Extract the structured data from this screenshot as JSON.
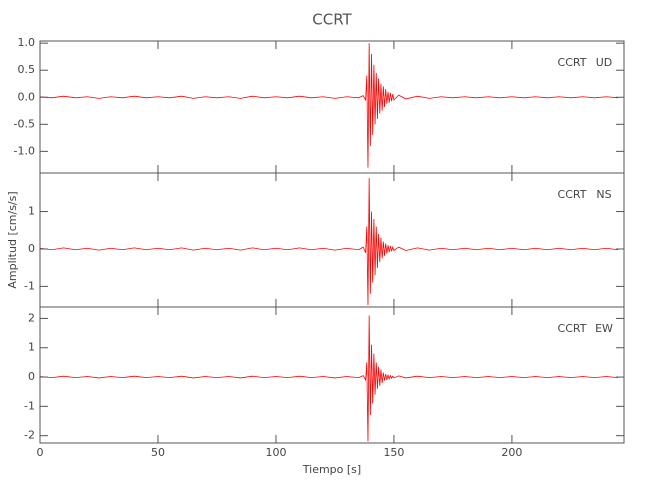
{
  "title": "CCRT",
  "xlabel": "Tiempo [s]",
  "ylabel": "Amplitud [cm/s/s]",
  "chart_data": [
    {
      "type": "line",
      "station": "CCRT",
      "component": "UD",
      "x": [
        0,
        5,
        10,
        15,
        20,
        25,
        30,
        35,
        40,
        45,
        50,
        55,
        60,
        65,
        70,
        75,
        80,
        85,
        90,
        95,
        100,
        105,
        110,
        115,
        120,
        125,
        130,
        135,
        137,
        138,
        138.5,
        139,
        139.5,
        140,
        140.5,
        141,
        141.5,
        142,
        142.5,
        143,
        143.5,
        144,
        144.5,
        145,
        145.5,
        146,
        146.5,
        147,
        147.5,
        148,
        148.5,
        149,
        149.5,
        150,
        152,
        155,
        160,
        165,
        170,
        175,
        180,
        185,
        190,
        195,
        200,
        205,
        210,
        215,
        220,
        225,
        230,
        235,
        240,
        245
      ],
      "series": [
        {
          "name": "UD",
          "color": "#ff0000",
          "values": [
            0.01,
            -0.01,
            0.02,
            -0.01,
            0.01,
            -0.02,
            0.01,
            -0.01,
            0.02,
            -0.01,
            0.01,
            -0.01,
            0.02,
            -0.02,
            0.01,
            -0.01,
            0.01,
            -0.02,
            0.02,
            -0.01,
            0.01,
            -0.01,
            0.02,
            -0.01,
            0.01,
            -0.02,
            0.01,
            -0.01,
            0.03,
            -0.05,
            0.4,
            -1.3,
            1.0,
            -0.9,
            0.8,
            -0.7,
            0.6,
            -0.5,
            0.45,
            -0.4,
            0.35,
            -0.3,
            0.25,
            -0.25,
            0.2,
            -0.18,
            0.15,
            -0.12,
            0.1,
            -0.1,
            0.08,
            -0.07,
            0.06,
            -0.05,
            0.04,
            -0.03,
            0.02,
            -0.02,
            0.01,
            -0.01,
            0.01,
            -0.01,
            0.01,
            -0.01,
            0.01,
            -0.01,
            0.01,
            -0.01,
            0.01,
            -0.01,
            0.01,
            -0.01,
            0.01,
            -0.01
          ]
        }
      ],
      "xlim": [
        0,
        247.5
      ],
      "xticks": [
        0,
        50,
        100,
        150,
        200
      ],
      "ylim": [
        -1.4,
        1.04
      ],
      "yticks": [
        {
          "value": 1,
          "label": "1.0"
        },
        {
          "value": 0.5,
          "label": "0.5"
        },
        {
          "value": 0,
          "label": "0.0"
        },
        {
          "value": -0.5,
          "label": "-0.5"
        },
        {
          "value": -1,
          "label": "-1.0"
        }
      ]
    },
    {
      "type": "line",
      "station": "CCRT",
      "component": "NS",
      "x": [
        0,
        5,
        10,
        15,
        20,
        25,
        30,
        35,
        40,
        45,
        50,
        55,
        60,
        65,
        70,
        75,
        80,
        85,
        90,
        95,
        100,
        105,
        110,
        115,
        120,
        125,
        130,
        135,
        137,
        138,
        138.5,
        139,
        139.5,
        140,
        140.5,
        141,
        141.5,
        142,
        142.5,
        143,
        143.5,
        144,
        144.5,
        145,
        145.5,
        146,
        146.5,
        147,
        147.5,
        148,
        148.5,
        149,
        149.5,
        150,
        152,
        155,
        160,
        165,
        170,
        175,
        180,
        185,
        190,
        195,
        200,
        205,
        210,
        215,
        220,
        225,
        230,
        235,
        240,
        245
      ],
      "series": [
        {
          "name": "NS",
          "color": "#ff0000",
          "values": [
            0.02,
            -0.02,
            0.03,
            -0.02,
            0.02,
            -0.03,
            0.02,
            -0.02,
            0.03,
            -0.02,
            0.02,
            -0.02,
            0.03,
            -0.03,
            0.02,
            -0.02,
            0.02,
            -0.03,
            0.03,
            -0.02,
            0.02,
            -0.02,
            0.03,
            -0.02,
            0.02,
            -0.03,
            0.02,
            -0.02,
            0.05,
            -0.1,
            0.6,
            -1.5,
            1.9,
            -1.2,
            1.0,
            -0.9,
            0.8,
            -0.7,
            0.6,
            -0.5,
            0.4,
            -0.35,
            0.3,
            -0.25,
            0.2,
            -0.18,
            0.15,
            -0.12,
            0.1,
            -0.09,
            0.08,
            -0.06,
            0.05,
            -0.04,
            0.05,
            -0.04,
            0.03,
            -0.03,
            0.02,
            -0.02,
            0.02,
            -0.02,
            0.02,
            -0.02,
            0.02,
            -0.02,
            0.02,
            -0.02,
            0.02,
            -0.02,
            0.02,
            -0.02,
            0.02,
            -0.02
          ]
        }
      ],
      "xlim": [
        0,
        247.5
      ],
      "xticks": [
        0,
        50,
        100,
        150,
        200
      ],
      "ylim": [
        -1.55,
        2.03
      ],
      "yticks": [
        1,
        0,
        -1
      ]
    },
    {
      "type": "line",
      "station": "CCRT",
      "component": "EW",
      "x": [
        0,
        5,
        10,
        15,
        20,
        25,
        30,
        35,
        40,
        45,
        50,
        55,
        60,
        65,
        70,
        75,
        80,
        85,
        90,
        95,
        100,
        105,
        110,
        115,
        120,
        125,
        130,
        135,
        137,
        138,
        138.5,
        139,
        139.5,
        140,
        140.5,
        141,
        141.5,
        142,
        142.5,
        143,
        143.5,
        144,
        144.5,
        145,
        145.5,
        146,
        146.5,
        147,
        147.5,
        148,
        148.5,
        149,
        149.5,
        150,
        152,
        155,
        160,
        165,
        170,
        175,
        180,
        185,
        190,
        195,
        200,
        205,
        210,
        215,
        220,
        225,
        230,
        235,
        240,
        245
      ],
      "series": [
        {
          "name": "EW",
          "color": "#ff0000",
          "values": [
            0.02,
            -0.02,
            0.03,
            -0.02,
            0.02,
            -0.03,
            0.02,
            -0.02,
            0.03,
            -0.02,
            0.02,
            -0.02,
            0.03,
            -0.03,
            0.02,
            -0.02,
            0.02,
            -0.03,
            0.03,
            -0.02,
            0.02,
            -0.02,
            0.03,
            -0.02,
            0.02,
            -0.03,
            0.02,
            -0.02,
            0.05,
            -0.1,
            0.5,
            -2.2,
            2.1,
            -1.3,
            1.1,
            -0.9,
            0.8,
            -0.6,
            0.5,
            -0.4,
            0.35,
            -0.3,
            0.25,
            -0.2,
            0.15,
            -0.12,
            0.1,
            -0.1,
            0.08,
            -0.06,
            0.05,
            -0.04,
            0.03,
            -0.03,
            0.04,
            -0.03,
            0.03,
            -0.02,
            0.02,
            -0.02,
            0.02,
            -0.02,
            0.02,
            -0.02,
            0.02,
            -0.02,
            0.02,
            -0.02,
            0.02,
            -0.02,
            0.02,
            -0.02,
            0.02,
            -0.02
          ]
        }
      ],
      "xlim": [
        0,
        247.5
      ],
      "xticks": [
        0,
        50,
        100,
        150,
        200
      ],
      "ylim": [
        -2.25,
        2.39
      ],
      "yticks": [
        2,
        1,
        0,
        -1,
        -2
      ]
    }
  ]
}
